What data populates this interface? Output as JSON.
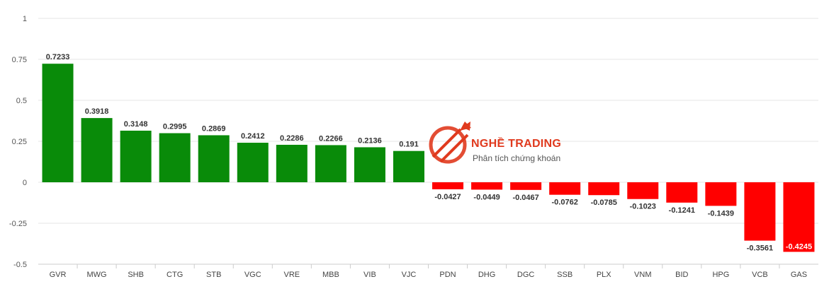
{
  "chart_data": {
    "type": "bar",
    "categories": [
      "GVR",
      "MWG",
      "SHB",
      "CTG",
      "STB",
      "VGC",
      "VRE",
      "MBB",
      "VIB",
      "VJC",
      "PDN",
      "DHG",
      "DGC",
      "SSB",
      "PLX",
      "VNM",
      "BID",
      "HPG",
      "VCB",
      "GAS"
    ],
    "values": [
      0.7233,
      0.3918,
      0.3148,
      0.2995,
      0.2869,
      0.2412,
      0.2286,
      0.2266,
      0.2136,
      0.191,
      -0.0427,
      -0.0449,
      -0.0467,
      -0.0762,
      -0.0785,
      -0.1023,
      -0.1241,
      -0.1439,
      -0.3561,
      -0.4245
    ],
    "value_labels": [
      "0.7233",
      "0.3918",
      "0.3148",
      "0.2995",
      "0.2869",
      "0.2412",
      "0.2286",
      "0.2266",
      "0.2136",
      "0.191",
      "-0.0427",
      "-0.0449",
      "-0.0467",
      "-0.0762",
      "-0.0785",
      "-0.1023",
      "-0.1241",
      "-0.1439",
      "-0.3561",
      "-0.4245"
    ],
    "yticks": [
      1,
      0.75,
      0.5,
      0.25,
      0,
      -0.25,
      -0.5
    ],
    "ytick_labels": [
      "1",
      "0.75",
      "0.5",
      "0.25",
      "0",
      "-0.25",
      "-0.5"
    ],
    "ylim": [
      -0.5,
      1
    ],
    "grid": true,
    "colors": {
      "positive": "#098b09",
      "negative": "#ff0000"
    },
    "title": "",
    "xlabel": "",
    "ylabel": ""
  },
  "watermark": {
    "title": "NGHỀ TRADING",
    "subtitle": "Phân tích chứng khoán",
    "color": "#e03a1e",
    "icon": "trading-arrows-logo"
  }
}
